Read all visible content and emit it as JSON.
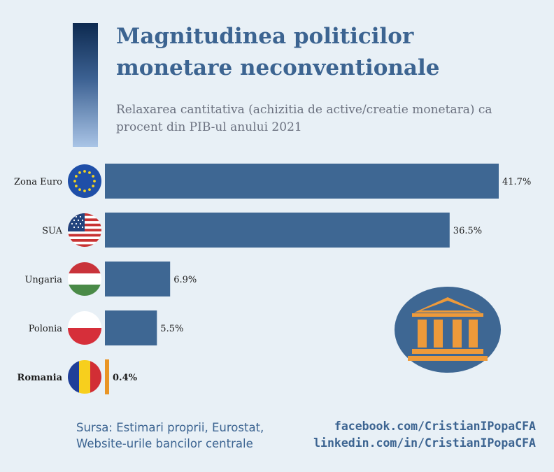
{
  "title": "Magnitudinea politicilor monetare neconventionale",
  "subtitle": "Relaxarea cantitativa (achizitia de active/creatie monetara) ca procent din PIB-ul anului 2021",
  "source_line1": "Sursa: Estimari proprii, Eurostat,",
  "source_line2": "Website-urile bancilor centrale",
  "link_facebook": "facebook.com/CristianIPopaCFA",
  "link_linkedin": "linkedin.com/in/CristianIPopaCFA",
  "icons": {
    "bank": "bank-building-icon",
    "flags": [
      "eu-flag-icon",
      "usa-flag-icon",
      "hungary-flag-icon",
      "poland-flag-icon",
      "romania-flag-icon"
    ]
  },
  "colors": {
    "bar": "#3e6793",
    "highlight_bar": "#e99526",
    "title": "#3c6491",
    "background": "#e8f0f6",
    "icon_circle": "#3e6793",
    "icon": "#ee9a3a"
  },
  "chart_data": {
    "type": "bar",
    "orientation": "horizontal",
    "categories": [
      "Zona Euro",
      "SUA",
      "Ungaria",
      "Polonia",
      "Romania"
    ],
    "values": [
      41.7,
      36.5,
      6.9,
      5.5,
      0.4
    ],
    "value_labels": [
      "41.7%",
      "36.5%",
      "6.9%",
      "5.5%",
      "0.4%"
    ],
    "highlight": "Romania",
    "xlim": [
      0,
      41.7
    ],
    "grid": false,
    "legend": "none"
  }
}
